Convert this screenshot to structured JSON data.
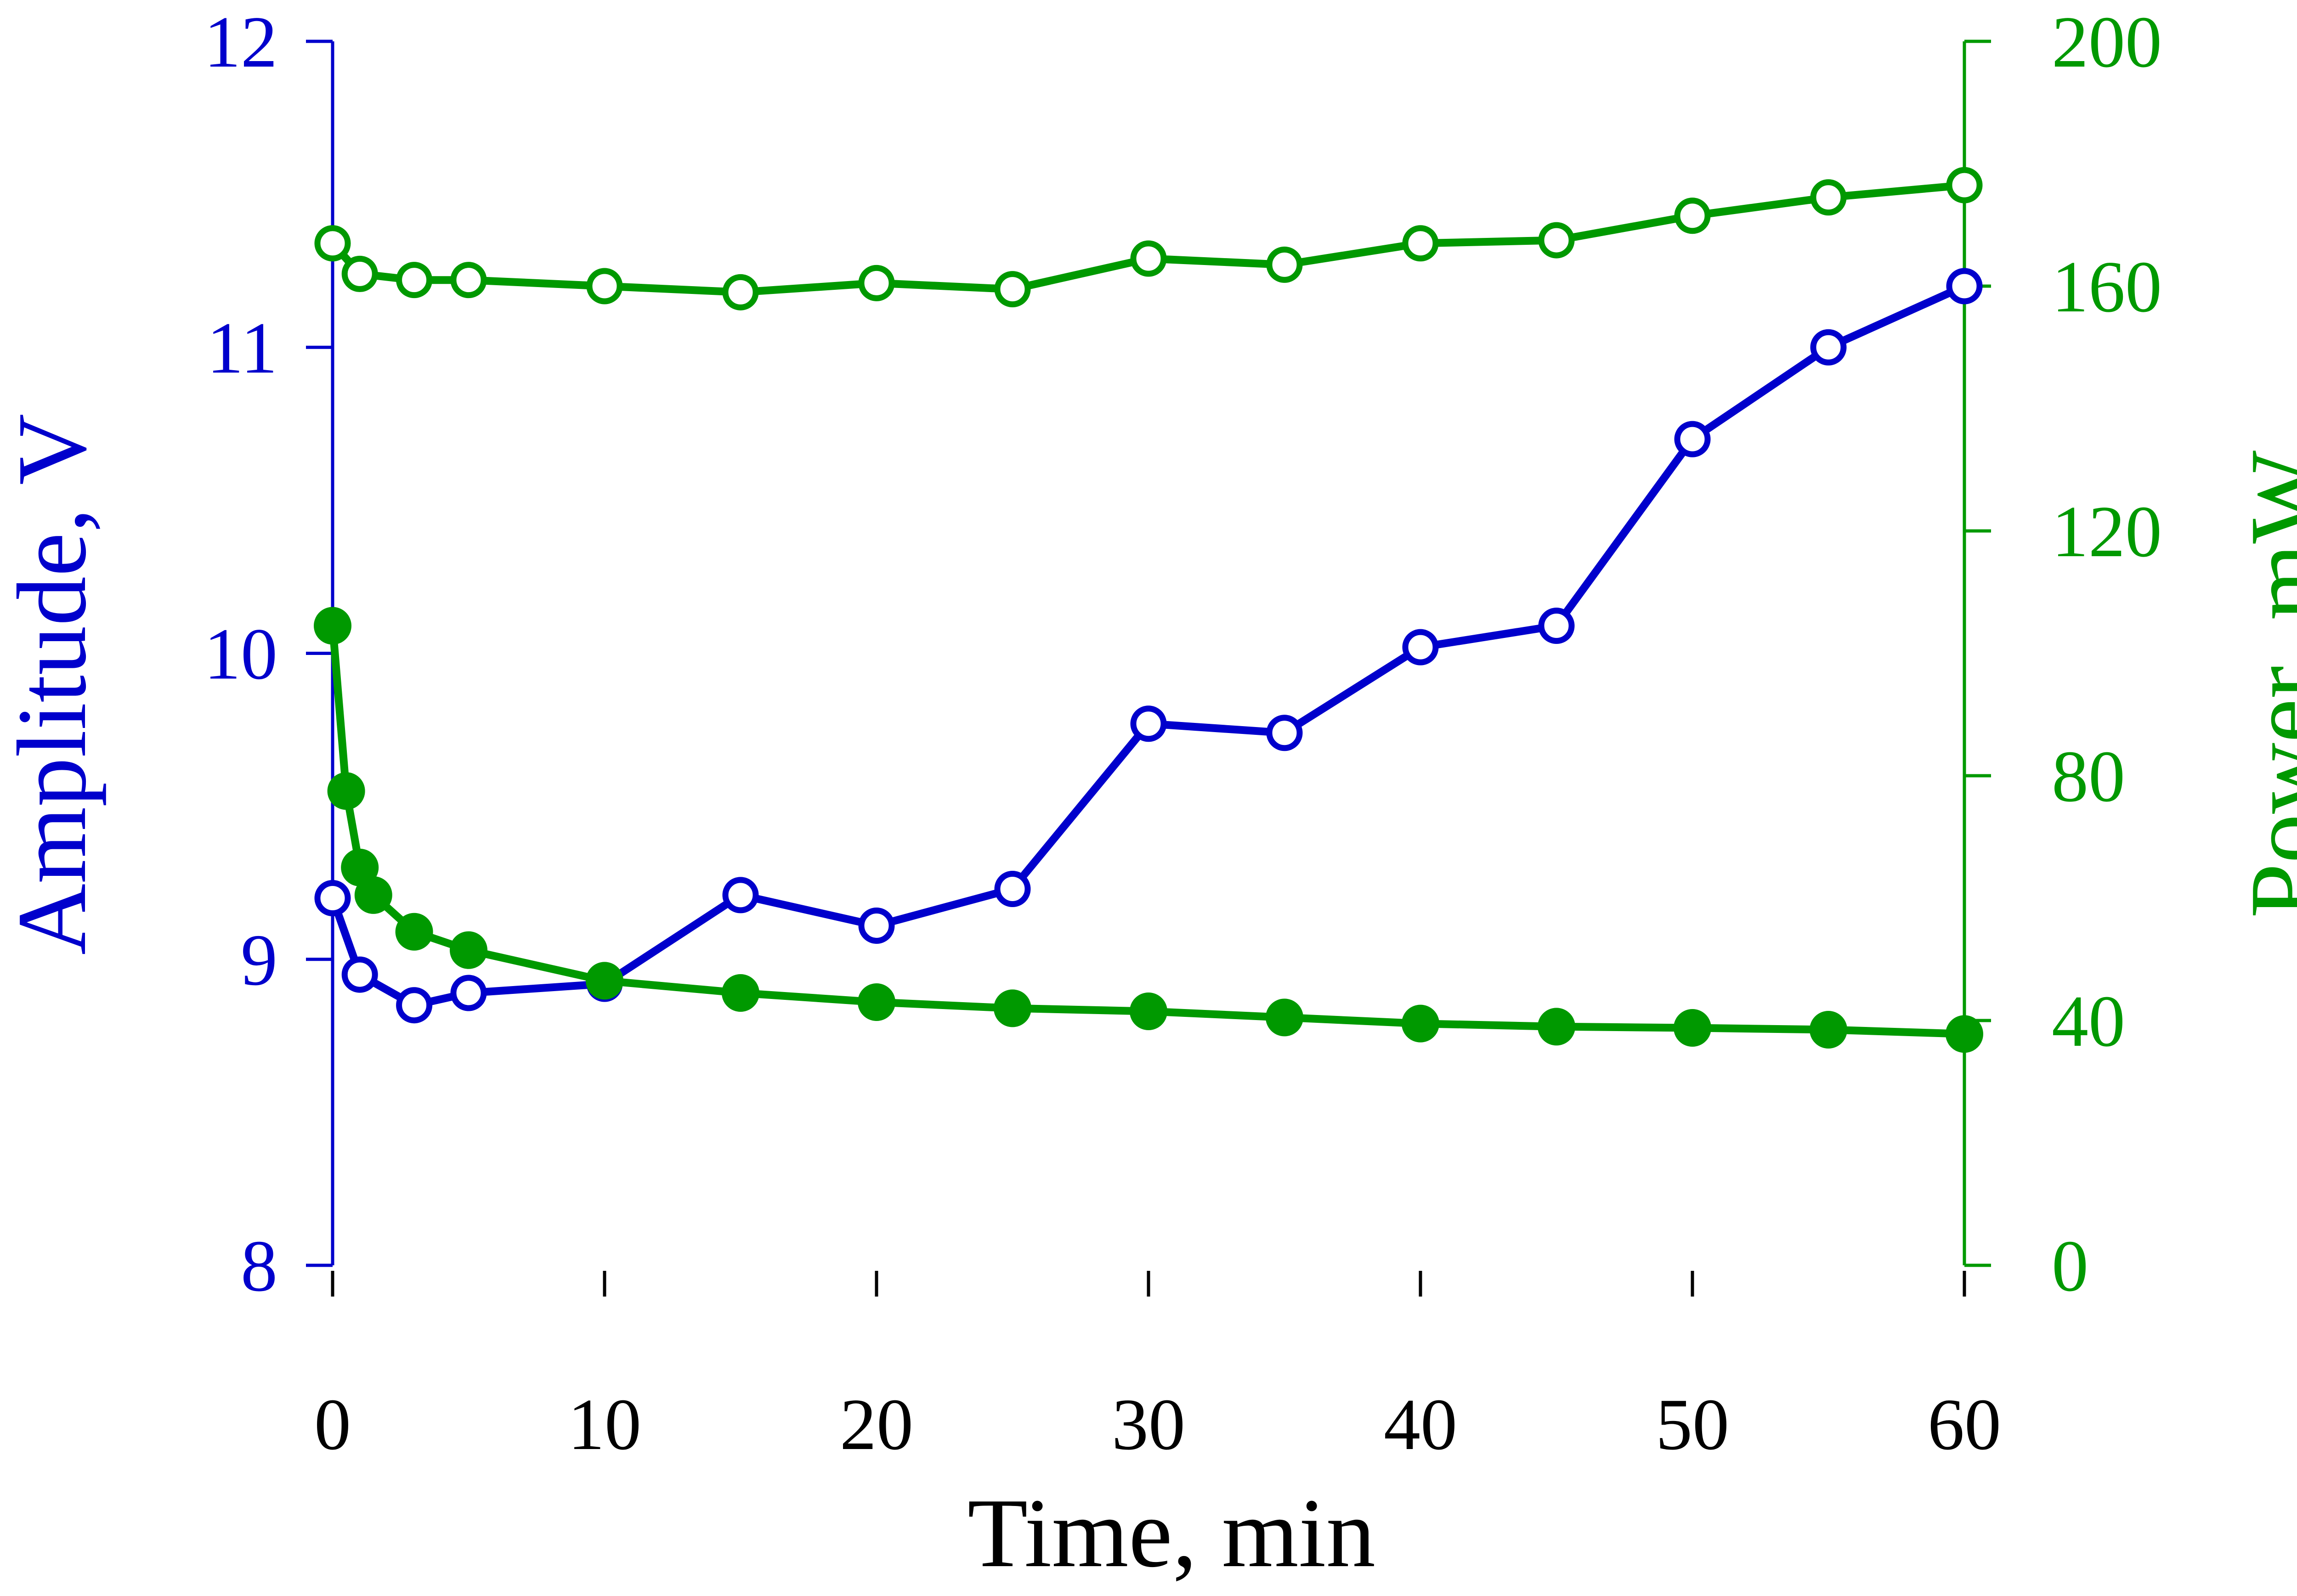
{
  "chart_data": {
    "type": "line",
    "title": "",
    "xlabel": "Time, min",
    "ylabel_left": "Amplitude, V",
    "ylabel_right": "Power, mW",
    "xlim": [
      0,
      60
    ],
    "ylim_left": [
      8,
      12
    ],
    "ylim_right": [
      0,
      200
    ],
    "x_ticks": [
      0,
      10,
      20,
      30,
      40,
      50,
      60
    ],
    "y_left_ticks": [
      8,
      9,
      10,
      11,
      12
    ],
    "y_right_ticks": [
      0,
      40,
      80,
      120,
      160,
      200
    ],
    "colors": {
      "left_axis": "#0000CC",
      "right_axis": "#009900",
      "amplitude_series": "#0000CC",
      "power_series": "#009900"
    },
    "grid": false,
    "series": [
      {
        "name": "Amplitude",
        "axis": "left",
        "marker": "open-circle",
        "color": "#0000CC",
        "x": [
          0,
          1,
          3,
          5,
          10,
          15,
          20,
          25,
          30,
          35,
          40,
          45,
          50,
          55,
          60
        ],
        "values": [
          9.2,
          8.95,
          8.85,
          8.89,
          8.92,
          9.21,
          9.11,
          9.23,
          9.77,
          9.74,
          10.02,
          10.09,
          10.7,
          11.0,
          11.2
        ]
      },
      {
        "name": "Power (open)",
        "axis": "right",
        "marker": "open-circle",
        "color": "#009900",
        "x": [
          0,
          1,
          3,
          5,
          10,
          15,
          20,
          25,
          30,
          35,
          40,
          45,
          50,
          55,
          60
        ],
        "values": [
          167,
          162,
          161,
          161,
          160,
          159,
          160.5,
          159.5,
          164.5,
          163.5,
          167,
          167.5,
          171.5,
          174.5,
          176.5
        ]
      },
      {
        "name": "Power (filled)",
        "axis": "right",
        "marker": "filled-circle",
        "color": "#009900",
        "x": [
          0,
          0.5,
          1,
          1.5,
          3,
          5,
          10,
          15,
          20,
          25,
          30,
          35,
          40,
          45,
          50,
          55,
          60
        ],
        "values": [
          104.5,
          77.5,
          65,
          60.5,
          54.5,
          51.5,
          46.5,
          44.5,
          43,
          42,
          41.5,
          40.5,
          39.5,
          39,
          38.8,
          38.5,
          37.8
        ]
      }
    ]
  }
}
